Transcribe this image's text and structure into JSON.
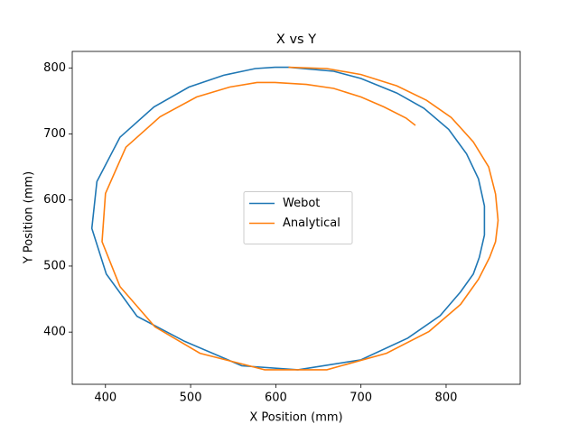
{
  "chart_data": {
    "type": "line",
    "title": "X vs Y",
    "x_label": "X Position (mm)",
    "y_label": "Y Position (mm)",
    "xlim": [
      361,
      887
    ],
    "ylim": [
      321,
      825
    ],
    "xticks": [
      400,
      500,
      600,
      700,
      800
    ],
    "yticks": [
      400,
      500,
      600,
      700,
      800
    ],
    "legend": "center",
    "series": [
      {
        "name": "Webot",
        "color": "#1f77b4",
        "x": [
          599,
          615,
          668,
          700,
          742,
          774,
          803,
          824,
          838,
          845,
          845,
          839,
          832,
          817,
          793,
          755,
          700,
          626,
          560,
          493,
          437,
          401,
          384,
          390,
          417,
          457,
          498,
          539,
          576,
          599
        ],
        "values": [
          801,
          801,
          795,
          784,
          762,
          739,
          707,
          670,
          632,
          591,
          547,
          513,
          488,
          461,
          425,
          391,
          358,
          343,
          349,
          386,
          424,
          488,
          557,
          628,
          695,
          741,
          771,
          789,
          799,
          801
        ]
      },
      {
        "name": "Analytical",
        "color": "#ff7f0e",
        "x": [
          764,
          753,
          727,
          700,
          668,
          636,
          599,
          578,
          546,
          507,
          464,
          424,
          400,
          396,
          417,
          458,
          511,
          587,
          660,
          730,
          780,
          817,
          838,
          851,
          858,
          861,
          858,
          850,
          832,
          806,
          777,
          742,
          700,
          660,
          615
        ],
        "values": [
          713,
          724,
          741,
          756,
          769,
          775,
          778,
          778,
          771,
          756,
          726,
          680,
          610,
          537,
          469,
          408,
          368,
          343,
          343,
          368,
          401,
          442,
          480,
          513,
          537,
          569,
          609,
          650,
          688,
          725,
          751,
          773,
          790,
          799,
          801
        ]
      }
    ]
  }
}
